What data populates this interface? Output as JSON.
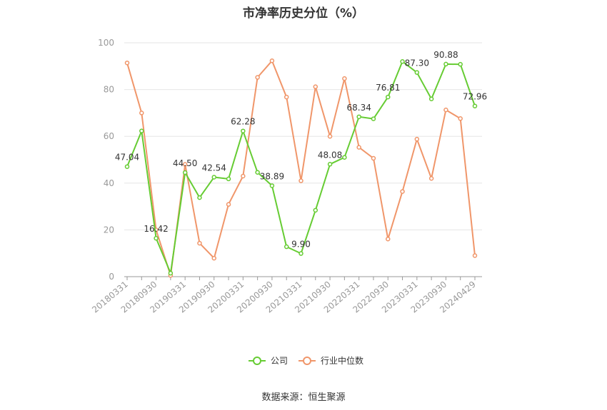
{
  "title": "市净率历史分位（%）",
  "source": "数据来源：恒生聚源",
  "chart_data": {
    "type": "line",
    "title": "市净率历史分位（%）",
    "ylim": [
      0,
      100
    ],
    "yticks": [
      0,
      20,
      40,
      60,
      80,
      100
    ],
    "grid": true,
    "legend_position": "bottom-center",
    "x_tick_labels": [
      "20180331",
      "20180930",
      "20190331",
      "20190930",
      "20200331",
      "20200930",
      "20210331",
      "20210930",
      "20220331",
      "20220930",
      "20230331",
      "20230930",
      "20240429"
    ],
    "x": [
      "20180331",
      "20180630",
      "20180930",
      "20181231",
      "20190331",
      "20190630",
      "20190930",
      "20191231",
      "20200331",
      "20200630",
      "20200930",
      "20201231",
      "20210331",
      "20210630",
      "20210930",
      "20211231",
      "20220331",
      "20220630",
      "20220930",
      "20221231",
      "20230331",
      "20230630",
      "20230930",
      "20231231",
      "20240429"
    ],
    "series": [
      {
        "name": "公司",
        "color": "#66cc33",
        "values": [
          47.04,
          62.3,
          16.42,
          1.5,
          44.5,
          33.8,
          42.54,
          41.8,
          62.28,
          44.6,
          38.89,
          12.8,
          9.9,
          28.4,
          48.08,
          51.0,
          68.34,
          67.5,
          76.81,
          92.0,
          87.3,
          76.0,
          90.88,
          90.8,
          72.96
        ],
        "labels": {
          "0": "47.04",
          "2": "16.42",
          "4": "44.50",
          "6": "42.54",
          "8": "62.28",
          "10": "38.89",
          "12": "9.90",
          "14": "48.08",
          "16": "68.34",
          "18": "76.81",
          "20": "87.30",
          "22": "90.88",
          "24": "72.96"
        }
      },
      {
        "name": "行业中位数",
        "color": "#f0966a",
        "values": [
          91.4,
          70.0,
          20.0,
          0.5,
          48.0,
          14.3,
          7.9,
          30.9,
          43.0,
          85.2,
          92.3,
          76.8,
          41.0,
          81.2,
          60.0,
          84.7,
          55.3,
          50.6,
          16.1,
          36.4,
          58.8,
          42.0,
          71.3,
          67.6,
          9.0
        ]
      }
    ]
  }
}
